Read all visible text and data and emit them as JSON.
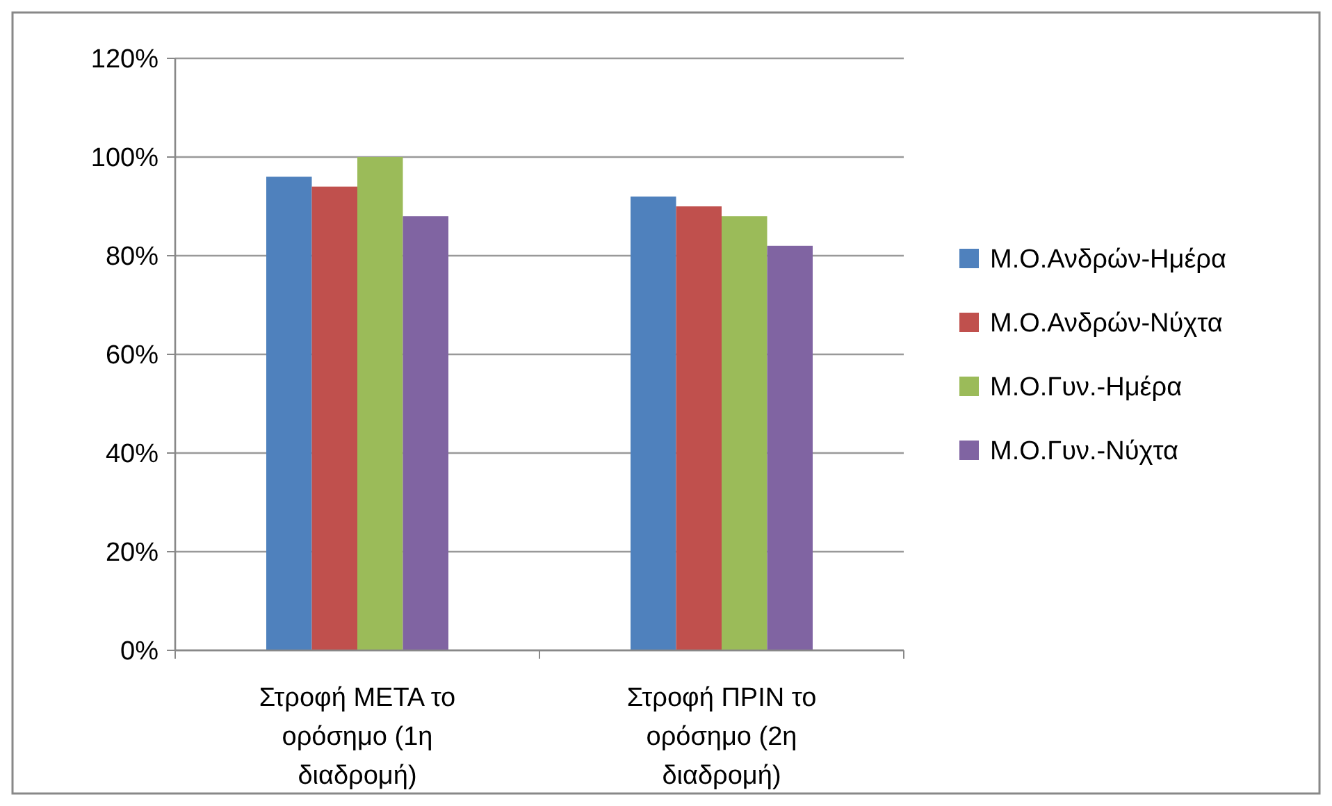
{
  "chart_data": {
    "type": "bar",
    "categories": [
      "Στροφή ΜΕΤΑ το ορόσημο (1η διαδρομή)",
      "Στροφή ΠΡΙΝ το ορόσημο (2η διαδρομή)"
    ],
    "series": [
      {
        "name": "Μ.Ο.Ανδρών-Ημέρα",
        "color": "#4f81bd",
        "values": [
          96,
          92
        ]
      },
      {
        "name": "Μ.Ο.Ανδρών-Νύχτα",
        "color": "#c0504d",
        "values": [
          94,
          90
        ]
      },
      {
        "name": "Μ.Ο.Γυν.-Ημέρα",
        "color": "#9bbb59",
        "values": [
          100,
          88
        ]
      },
      {
        "name": "Μ.Ο.Γυν.-Νύχτα",
        "color": "#8064a2",
        "values": [
          88,
          82
        ]
      }
    ],
    "ylim": [
      0,
      120
    ],
    "yticks": [
      {
        "value": 0,
        "label": "0%"
      },
      {
        "value": 20,
        "label": "20%"
      },
      {
        "value": 40,
        "label": "40%"
      },
      {
        "value": 60,
        "label": "60%"
      },
      {
        "value": 80,
        "label": "80%"
      },
      {
        "value": 100,
        "label": "100%"
      },
      {
        "value": 120,
        "label": "120%"
      }
    ],
    "grid": "y",
    "legend": "right"
  }
}
